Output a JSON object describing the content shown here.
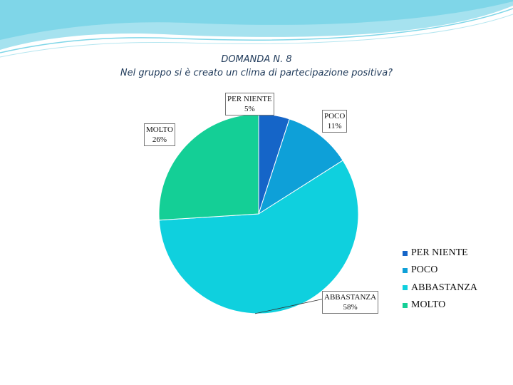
{
  "chart_data": {
    "type": "pie",
    "title": "DOMANDA N. 8",
    "subtitle": "Nel gruppo si è creato un clima di partecipazione positiva?",
    "categories": [
      "PER NIENTE",
      "POCO",
      "ABBASTANZA",
      "MOLTO"
    ],
    "values": [
      5,
      11,
      58,
      26
    ],
    "labels": [
      "5%",
      "11%",
      "58%",
      "26%"
    ],
    "colors": [
      "#1565c8",
      "#0ea0d8",
      "#0fd0de",
      "#14cf96"
    ],
    "legend_position": "right"
  }
}
